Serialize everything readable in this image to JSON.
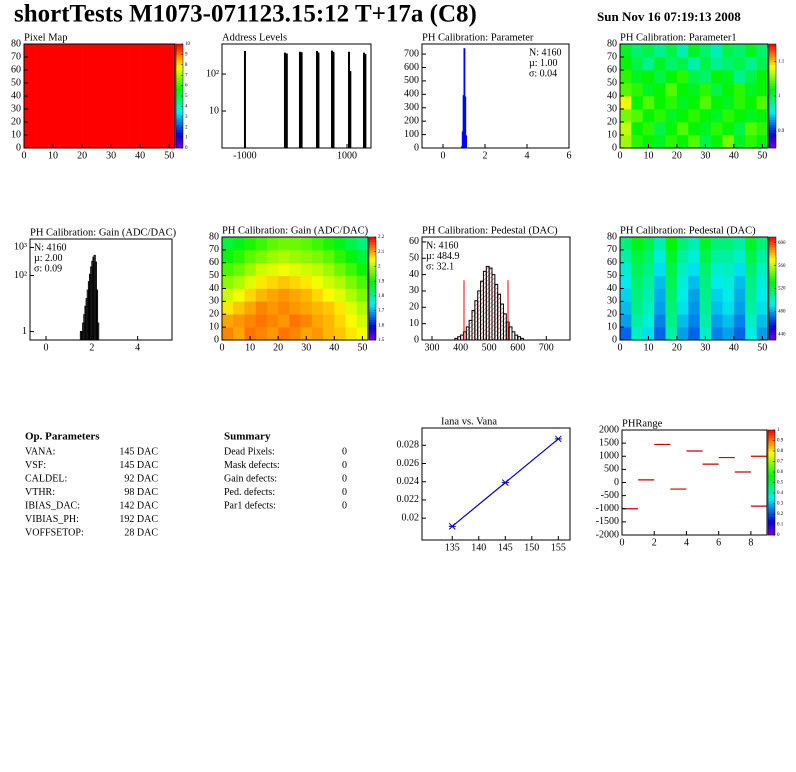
{
  "header": {
    "title": "shortTests M1073-071123.15:12 T+17a (C8)",
    "date": "Sun Nov 16 07:19:13 2008"
  },
  "op_parameters": {
    "title": "Op. Parameters",
    "rows": [
      [
        "VANA:",
        "145 DAC"
      ],
      [
        "VSF:",
        "145 DAC"
      ],
      [
        "CALDEL:",
        "92 DAC"
      ],
      [
        "VTHR:",
        "98 DAC"
      ],
      [
        "IBIAS_DAC:",
        "142 DAC"
      ],
      [
        "VIBIAS_PH:",
        "192 DAC"
      ],
      [
        "VOFFSETOP:",
        "28 DAC"
      ]
    ]
  },
  "summary": {
    "title": "Summary",
    "rows": [
      {
        "label": "Dead Pixels:",
        "value": 0,
        "color": "#000000"
      },
      {
        "label": "Mask defects:",
        "value": 0,
        "color": "#000000"
      },
      {
        "label": "Gain defects:",
        "value": 0,
        "color": "#000000"
      },
      {
        "label": "Ped. defects:",
        "value": 0,
        "color": "#ff0000"
      },
      {
        "label": "Par1 defects:",
        "value": 0,
        "color": "#0000ff"
      }
    ]
  },
  "chart_data": [
    {
      "type": "heatmap",
      "title": "Pixel Map",
      "xlim": [
        0,
        52
      ],
      "ylim": [
        0,
        80
      ],
      "xticks": [
        0,
        10,
        20,
        30,
        40,
        50
      ],
      "yticks": [
        0,
        10,
        20,
        30,
        40,
        50,
        60,
        70,
        80
      ],
      "zlim": [
        0,
        10
      ],
      "zticks": [
        0,
        1,
        2,
        3,
        4,
        5,
        6,
        7,
        8,
        9,
        10
      ],
      "z": [
        [
          10,
          10,
          10,
          10,
          10,
          10,
          10,
          10,
          10,
          10,
          10,
          10,
          10
        ],
        [
          10,
          10,
          10,
          10,
          10,
          10,
          10,
          10,
          10,
          10,
          10,
          10,
          10
        ],
        [
          10,
          10,
          10,
          10,
          10,
          10,
          10,
          10,
          10,
          10,
          10,
          10,
          10
        ],
        [
          10,
          10,
          10,
          10,
          10,
          10,
          10,
          10,
          10,
          10,
          10,
          10,
          10
        ],
        [
          10,
          10,
          10,
          10,
          10,
          10,
          10,
          10,
          10,
          10,
          10,
          10,
          10
        ],
        [
          10,
          10,
          10,
          10,
          10,
          10,
          10,
          10,
          10,
          10,
          10,
          10,
          10
        ],
        [
          10,
          10,
          10,
          10,
          10,
          10,
          10,
          10,
          10,
          10,
          10,
          10,
          10
        ],
        [
          10,
          10,
          10,
          10,
          10,
          10,
          10,
          10,
          10,
          10,
          10,
          10,
          10
        ]
      ]
    },
    {
      "type": "bar",
      "title": "Address Levels",
      "xlim": [
        -1450,
        1470
      ],
      "ylim": [
        1,
        650
      ],
      "ylog": true,
      "xticks": [
        -1000,
        1000
      ],
      "yticks": [
        10,
        {
          "value": 100,
          "label": "10²"
        }
      ],
      "x": [
        -1000,
        -216,
        -180,
        78,
        110,
        412,
        440,
        706,
        735,
        1039,
        1065,
        1333,
        1360
      ],
      "values": [
        420,
        380,
        360,
        400,
        390,
        420,
        380,
        430,
        400,
        400,
        120,
        380,
        350
      ],
      "color": "#000000"
    },
    {
      "type": "histogram",
      "title": "PH Calibration: Parameter",
      "xlim": [
        -1,
        6
      ],
      "ylim": [
        0,
        775
      ],
      "xticks": [
        0,
        2,
        4,
        6
      ],
      "yticks": [
        0,
        100,
        200,
        300,
        400,
        500,
        600,
        700
      ],
      "bins": [
        0.88,
        0.92,
        0.96,
        1.0,
        1.04,
        1.08,
        1.12
      ],
      "counts": [
        8,
        120,
        390,
        740,
        380,
        90
      ],
      "color": "#0000ff",
      "stats_corner": "upper right",
      "stats": [
        {
          "text": "N: 4160",
          "color": "#0000ff"
        },
        {
          "text": "µ: 1.00",
          "color": "#0000ff"
        },
        {
          "text": "σ: 0.04",
          "color": "#0000ff"
        }
      ]
    },
    {
      "type": "heatmap",
      "title": "PH Calibration: Parameter1",
      "xlim": [
        0,
        52
      ],
      "ylim": [
        0,
        80
      ],
      "xticks": [
        0,
        10,
        20,
        30,
        40,
        50
      ],
      "yticks": [
        0,
        10,
        20,
        30,
        40,
        50,
        60,
        70,
        80
      ],
      "zlim": [
        0.85,
        1.15
      ],
      "zticks": [
        0.9,
        1,
        1.1
      ],
      "z": [
        [
          1.06,
          1.03,
          1.02,
          1.01,
          1.03,
          1.02,
          1.04,
          1.0,
          1.02,
          1.05,
          1.01,
          1.03,
          1.02
        ],
        [
          1.07,
          1.02,
          1.03,
          1.0,
          1.02,
          1.04,
          1.02,
          1.01,
          1.03,
          1.02,
          1.0,
          1.04,
          1.03
        ],
        [
          1.05,
          1.04,
          1.02,
          1.03,
          1.01,
          1.02,
          1.03,
          1.02,
          1.01,
          1.03,
          1.02,
          1.01,
          1.02
        ],
        [
          1.08,
          1.02,
          1.04,
          1.02,
          1.03,
          1.01,
          1.02,
          1.04,
          1.02,
          1.01,
          1.03,
          1.02,
          1.04
        ],
        [
          1.04,
          1.03,
          1.01,
          1.02,
          1.04,
          1.02,
          1.01,
          1.03,
          1.0,
          1.02,
          1.03,
          1.01,
          1.02
        ],
        [
          1.03,
          1.01,
          1.02,
          1.0,
          1.02,
          1.03,
          1.0,
          0.99,
          1.02,
          1.01,
          0.98,
          1.0,
          1.02
        ],
        [
          1.02,
          1.0,
          0.98,
          1.01,
          0.99,
          1.0,
          0.97,
          1.0,
          0.98,
          0.99,
          1.0,
          0.98,
          1.0
        ],
        [
          1.01,
          0.99,
          1.0,
          0.98,
          1.0,
          0.97,
          1.01,
          0.99,
          0.97,
          1.0,
          0.99,
          1.01,
          0.99
        ]
      ]
    },
    {
      "type": "histogram",
      "title": "PH Calibration: Gain (ADC/DAC)",
      "xlim": [
        -0.7,
        5.5
      ],
      "ylim": [
        0.5,
        2000
      ],
      "ylog": true,
      "xticks": [
        0,
        2,
        4
      ],
      "yticks": [
        1,
        {
          "value": 100,
          "label": "10²"
        },
        {
          "value": 1000,
          "label": "10³"
        }
      ],
      "bins": [
        1.5,
        1.55,
        1.6,
        1.65,
        1.7,
        1.75,
        1.8,
        1.85,
        1.9,
        1.95,
        2.0,
        2.05,
        2.1,
        2.15,
        2.2,
        2.25,
        2.3
      ],
      "counts": [
        1,
        1,
        2,
        4,
        8,
        15,
        30,
        60,
        110,
        200,
        320,
        450,
        520,
        300,
        30,
        2
      ],
      "color": "#000000",
      "stats_corner": "upper left",
      "stats": [
        {
          "text": "N: 4160",
          "color": "#000000"
        },
        {
          "text": "µ: 2.00",
          "color": "#000000"
        },
        {
          "text": "σ: 0.09",
          "color": "#000000"
        }
      ]
    },
    {
      "type": "heatmap",
      "title": "PH Calibration: Gain (ADC/DAC)",
      "xlim": [
        0,
        52
      ],
      "ylim": [
        0,
        80
      ],
      "xticks": [
        0,
        10,
        20,
        30,
        40,
        50
      ],
      "yticks": [
        0,
        10,
        20,
        30,
        40,
        50,
        60,
        70,
        80
      ],
      "zlim": [
        1.5,
        2.2
      ],
      "zticks": [
        1.5,
        1.6,
        1.7,
        1.8,
        1.9,
        2,
        2.1,
        2.2
      ],
      "z": [
        [
          2.12,
          2.1,
          2.13,
          2.12,
          2.11,
          2.13,
          2.12,
          2.1,
          2.11,
          2.09,
          2.08,
          2.06,
          2.04
        ],
        [
          2.1,
          2.11,
          2.12,
          2.13,
          2.12,
          2.11,
          2.13,
          2.12,
          2.1,
          2.09,
          2.07,
          2.05,
          2.02
        ],
        [
          2.06,
          2.08,
          2.1,
          2.12,
          2.11,
          2.12,
          2.11,
          2.1,
          2.09,
          2.08,
          2.06,
          2.03,
          2.0
        ],
        [
          2.02,
          2.04,
          2.07,
          2.09,
          2.1,
          2.11,
          2.1,
          2.09,
          2.07,
          2.05,
          2.03,
          2.0,
          1.97
        ],
        [
          1.98,
          2.0,
          2.03,
          2.06,
          2.07,
          2.08,
          2.07,
          2.06,
          2.04,
          2.02,
          2.0,
          1.97,
          1.94
        ],
        [
          1.94,
          1.96,
          1.99,
          2.02,
          2.03,
          2.04,
          2.03,
          2.02,
          2.01,
          1.99,
          1.96,
          1.93,
          1.9
        ],
        [
          1.9,
          1.92,
          1.95,
          1.97,
          1.99,
          2.0,
          1.99,
          1.98,
          1.97,
          1.95,
          1.92,
          1.89,
          1.86
        ],
        [
          1.86,
          1.88,
          1.91,
          1.93,
          1.95,
          1.96,
          1.96,
          1.95,
          1.93,
          1.91,
          1.88,
          1.85,
          1.82
        ]
      ]
    },
    {
      "type": "histogram",
      "title": "PH Calibration: Pedestal (DAC)",
      "xlim": [
        265,
        783
      ],
      "ylim": [
        0,
        63
      ],
      "xticks": [
        300,
        400,
        500,
        600,
        700
      ],
      "yticks": [
        0,
        10,
        20,
        30,
        40,
        50,
        60
      ],
      "bins": [
        380,
        390,
        400,
        410,
        420,
        430,
        440,
        450,
        460,
        470,
        480,
        490,
        500,
        510,
        520,
        530,
        540,
        550,
        560,
        570,
        580,
        590,
        600,
        610,
        620
      ],
      "counts": [
        1,
        2,
        3,
        5,
        8,
        12,
        18,
        24,
        30,
        36,
        42,
        45,
        44,
        40,
        34,
        28,
        22,
        16,
        11,
        8,
        5,
        3,
        2,
        1
      ],
      "color": "#000000",
      "cut_lines": [
        412,
        566
      ],
      "cut_color": "#ff0000",
      "stats_corner": "upper left",
      "stats": [
        {
          "text": "N: 4160",
          "color": "#000000"
        },
        {
          "text": "µ: 484.9",
          "color": "#ff0000"
        },
        {
          "text": "σ: 32.1",
          "color": "#ff0000"
        }
      ]
    },
    {
      "type": "heatmap",
      "title": "PH Calibration: Pedestal (DAC)",
      "xlim": [
        0,
        52
      ],
      "ylim": [
        0,
        80
      ],
      "xticks": [
        0,
        10,
        20,
        30,
        40,
        50
      ],
      "yticks": [
        0,
        10,
        20,
        30,
        40,
        50,
        60,
        70,
        80
      ],
      "zlim": [
        430,
        610
      ],
      "zticks": [
        440,
        480,
        520,
        560,
        600
      ],
      "z": [
        [
          470,
          500,
          490,
          470,
          505,
          480,
          470,
          500,
          475,
          480,
          470,
          495,
          480
        ],
        [
          480,
          505,
          495,
          475,
          510,
          485,
          475,
          505,
          480,
          485,
          475,
          500,
          485
        ],
        [
          485,
          510,
          500,
          480,
          512,
          490,
          478,
          508,
          485,
          490,
          480,
          505,
          490
        ],
        [
          488,
          512,
          502,
          482,
          515,
          492,
          480,
          510,
          488,
          492,
          482,
          508,
          492
        ],
        [
          492,
          515,
          505,
          485,
          518,
          495,
          485,
          512,
          492,
          495,
          485,
          510,
          495
        ],
        [
          498,
          518,
          510,
          490,
          520,
          500,
          490,
          515,
          498,
          500,
          490,
          515,
          500
        ],
        [
          505,
          522,
          515,
          495,
          525,
          505,
          495,
          520,
          505,
          505,
          498,
          520,
          505
        ],
        [
          512,
          528,
          520,
          502,
          530,
          512,
          502,
          525,
          512,
          512,
          505,
          525,
          512
        ]
      ]
    },
    {
      "type": "line",
      "title": "Iana vs. Vana",
      "xlim": [
        129.3,
        157.2
      ],
      "ylim": [
        0.0176,
        0.0299
      ],
      "xticks": [
        135,
        140,
        145,
        150,
        155
      ],
      "yticks": [
        0.02,
        0.022,
        0.024,
        0.026,
        0.028
      ],
      "x": [
        135,
        145,
        155
      ],
      "values": [
        0.0191,
        0.0239,
        0.0287
      ],
      "color": "#0000cc"
    },
    {
      "type": "scatter",
      "title": "PHRange",
      "xlim": [
        0,
        9
      ],
      "ylim": [
        -2000,
        2000
      ],
      "xticks": [
        0,
        2,
        4,
        6,
        8
      ],
      "yticks": [
        -2000,
        -1500,
        -1000,
        -500,
        0,
        500,
        1000,
        1500,
        2000
      ],
      "x": [
        0.5,
        1.5,
        2.5,
        3.5,
        4.5,
        5.5,
        6.5,
        7.5,
        8.5,
        8.5
      ],
      "values": [
        -1000,
        100,
        1450,
        -250,
        1200,
        700,
        950,
        400,
        1000,
        -900
      ],
      "color": "#cc0000",
      "zlim": [
        0,
        1
      ],
      "zticks": [
        0,
        0.1,
        0.2,
        0.3,
        0.4,
        0.5,
        0.6,
        0.7,
        0.8,
        0.9,
        1
      ]
    }
  ]
}
